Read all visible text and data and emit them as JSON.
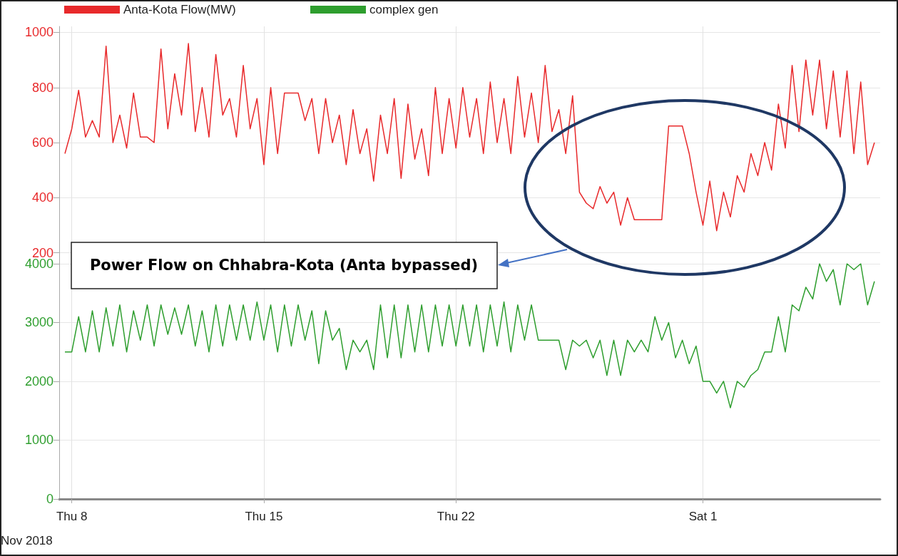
{
  "chart_data": [
    {
      "type": "line",
      "x": [
        "2018-11-07T18:00",
        "2018-11-08T00:00",
        "2018-11-08T06:00",
        "2018-11-08T12:00",
        "2018-11-08T18:00",
        "2018-11-09T00:00",
        "2018-11-09T06:00",
        "2018-11-09T12:00",
        "2018-11-09T18:00",
        "2018-11-10T00:00",
        "2018-11-10T06:00",
        "2018-11-10T12:00",
        "2018-11-10T18:00",
        "2018-11-11T00:00",
        "2018-11-11T06:00",
        "2018-11-11T12:00",
        "2018-11-11T18:00",
        "2018-11-12T00:00",
        "2018-11-12T06:00",
        "2018-11-12T12:00",
        "2018-11-12T18:00",
        "2018-11-13T00:00",
        "2018-11-13T06:00",
        "2018-11-13T12:00",
        "2018-11-13T18:00",
        "2018-11-14T00:00",
        "2018-11-14T06:00",
        "2018-11-14T12:00",
        "2018-11-14T18:00",
        "2018-11-15T00:00",
        "2018-11-15T06:00",
        "2018-11-15T12:00",
        "2018-11-15T18:00",
        "2018-11-16T00:00",
        "2018-11-16T06:00",
        "2018-11-16T12:00",
        "2018-11-16T18:00",
        "2018-11-17T00:00",
        "2018-11-17T06:00",
        "2018-11-17T12:00",
        "2018-11-17T18:00",
        "2018-11-18T00:00",
        "2018-11-18T06:00",
        "2018-11-18T12:00",
        "2018-11-18T18:00",
        "2018-11-19T00:00",
        "2018-11-19T06:00",
        "2018-11-19T12:00",
        "2018-11-19T18:00",
        "2018-11-20T00:00",
        "2018-11-20T06:00",
        "2018-11-20T12:00",
        "2018-11-20T18:00",
        "2018-11-21T00:00",
        "2018-11-21T06:00",
        "2018-11-21T12:00",
        "2018-11-21T18:00",
        "2018-11-22T00:00",
        "2018-11-22T06:00",
        "2018-11-22T12:00",
        "2018-11-22T18:00",
        "2018-11-23T00:00",
        "2018-11-23T06:00",
        "2018-11-23T12:00",
        "2018-11-23T18:00",
        "2018-11-24T00:00",
        "2018-11-24T06:00",
        "2018-11-24T12:00",
        "2018-11-24T18:00",
        "2018-11-25T00:00",
        "2018-11-25T06:00",
        "2018-11-25T12:00",
        "2018-11-25T18:00",
        "2018-11-26T00:00",
        "2018-11-26T06:00",
        "2018-11-26T12:00",
        "2018-11-26T18:00",
        "2018-11-27T00:00",
        "2018-11-27T06:00",
        "2018-11-27T12:00",
        "2018-11-27T18:00",
        "2018-11-28T00:00",
        "2018-11-28T06:00",
        "2018-11-28T12:00",
        "2018-11-28T18:00",
        "2018-11-29T00:00",
        "2018-11-29T06:00",
        "2018-11-29T12:00",
        "2018-11-29T18:00",
        "2018-11-30T00:00",
        "2018-11-30T06:00",
        "2018-11-30T12:00",
        "2018-11-30T18:00",
        "2018-12-01T00:00",
        "2018-12-01T06:00",
        "2018-12-01T12:00",
        "2018-12-01T18:00",
        "2018-12-02T00:00",
        "2018-12-02T06:00",
        "2018-12-02T12:00",
        "2018-12-02T18:00",
        "2018-12-03T00:00",
        "2018-12-03T06:00",
        "2018-12-03T12:00",
        "2018-12-03T18:00",
        "2018-12-04T00:00",
        "2018-12-04T06:00",
        "2018-12-04T12:00",
        "2018-12-04T18:00",
        "2018-12-05T00:00",
        "2018-12-05T06:00",
        "2018-12-05T12:00",
        "2018-12-05T18:00",
        "2018-12-06T00:00",
        "2018-12-06T06:00",
        "2018-12-06T12:00",
        "2018-12-06T18:00",
        "2018-12-07T00:00",
        "2018-12-07T06:00"
      ],
      "series": [
        {
          "name": "Anta-Kota Flow(MW)",
          "color": "#e8292b",
          "values": [
            560,
            650,
            790,
            620,
            680,
            620,
            950,
            600,
            700,
            580,
            780,
            620,
            620,
            600,
            940,
            650,
            850,
            700,
            960,
            640,
            800,
            620,
            920,
            700,
            760,
            620,
            880,
            650,
            760,
            520,
            800,
            560,
            780,
            780,
            780,
            680,
            760,
            560,
            760,
            600,
            700,
            520,
            720,
            560,
            650,
            460,
            700,
            560,
            760,
            470,
            740,
            540,
            650,
            480,
            800,
            560,
            760,
            580,
            800,
            620,
            760,
            560,
            820,
            600,
            760,
            560,
            840,
            620,
            780,
            600,
            880,
            640,
            720,
            560,
            770,
            420,
            380,
            360,
            440,
            380,
            420,
            300,
            400,
            320,
            320,
            320,
            320,
            320,
            660,
            660,
            660,
            560,
            420,
            300,
            460,
            280,
            420,
            330,
            480,
            420,
            560,
            480,
            600,
            500,
            740,
            580,
            880,
            640,
            900,
            700,
            900,
            650,
            860,
            620,
            860,
            560,
            820,
            520,
            600
          ]
        }
      ],
      "xlim": [
        "2018-11-07T13:00",
        "2018-12-07T11:00"
      ],
      "xticks": [
        {
          "value": "2018-11-08T00:00",
          "label": null
        },
        {
          "value": "2018-11-15T00:00",
          "label": null
        },
        {
          "value": "2018-11-22T00:00",
          "label": null
        },
        {
          "value": "2018-12-01T00:00",
          "label": null
        }
      ],
      "ylim": [
        160,
        1022
      ],
      "yticks": [
        200,
        400,
        600,
        800,
        1000
      ],
      "tick_labels": "y",
      "grid": true,
      "legend": "top left",
      "marker": "none",
      "line_style": "solid",
      "annotations": [
        "Power Flow on Chhabra-Kota (Anta bypassed)"
      ]
    },
    {
      "type": "line",
      "xlabel": "Nov 2018",
      "x": [
        "2018-11-07T18:00",
        "2018-11-08T00:00",
        "2018-11-08T06:00",
        "2018-11-08T12:00",
        "2018-11-08T18:00",
        "2018-11-09T00:00",
        "2018-11-09T06:00",
        "2018-11-09T12:00",
        "2018-11-09T18:00",
        "2018-11-10T00:00",
        "2018-11-10T06:00",
        "2018-11-10T12:00",
        "2018-11-10T18:00",
        "2018-11-11T00:00",
        "2018-11-11T06:00",
        "2018-11-11T12:00",
        "2018-11-11T18:00",
        "2018-11-12T00:00",
        "2018-11-12T06:00",
        "2018-11-12T12:00",
        "2018-11-12T18:00",
        "2018-11-13T00:00",
        "2018-11-13T06:00",
        "2018-11-13T12:00",
        "2018-11-13T18:00",
        "2018-11-14T00:00",
        "2018-11-14T06:00",
        "2018-11-14T12:00",
        "2018-11-14T18:00",
        "2018-11-15T00:00",
        "2018-11-15T06:00",
        "2018-11-15T12:00",
        "2018-11-15T18:00",
        "2018-11-16T00:00",
        "2018-11-16T06:00",
        "2018-11-16T12:00",
        "2018-11-16T18:00",
        "2018-11-17T00:00",
        "2018-11-17T06:00",
        "2018-11-17T12:00",
        "2018-11-17T18:00",
        "2018-11-18T00:00",
        "2018-11-18T06:00",
        "2018-11-18T12:00",
        "2018-11-18T18:00",
        "2018-11-19T00:00",
        "2018-11-19T06:00",
        "2018-11-19T12:00",
        "2018-11-19T18:00",
        "2018-11-20T00:00",
        "2018-11-20T06:00",
        "2018-11-20T12:00",
        "2018-11-20T18:00",
        "2018-11-21T00:00",
        "2018-11-21T06:00",
        "2018-11-21T12:00",
        "2018-11-21T18:00",
        "2018-11-22T00:00",
        "2018-11-22T06:00",
        "2018-11-22T12:00",
        "2018-11-22T18:00",
        "2018-11-23T00:00",
        "2018-11-23T06:00",
        "2018-11-23T12:00",
        "2018-11-23T18:00",
        "2018-11-24T00:00",
        "2018-11-24T06:00",
        "2018-11-24T12:00",
        "2018-11-24T18:00",
        "2018-11-25T00:00",
        "2018-11-25T06:00",
        "2018-11-25T12:00",
        "2018-11-25T18:00",
        "2018-11-26T00:00",
        "2018-11-26T06:00",
        "2018-11-26T12:00",
        "2018-11-26T18:00",
        "2018-11-27T00:00",
        "2018-11-27T06:00",
        "2018-11-27T12:00",
        "2018-11-27T18:00",
        "2018-11-28T00:00",
        "2018-11-28T06:00",
        "2018-11-28T12:00",
        "2018-11-28T18:00",
        "2018-11-29T00:00",
        "2018-11-29T06:00",
        "2018-11-29T12:00",
        "2018-11-29T18:00",
        "2018-11-30T00:00",
        "2018-11-30T06:00",
        "2018-11-30T12:00",
        "2018-11-30T18:00",
        "2018-12-01T00:00",
        "2018-12-01T06:00",
        "2018-12-01T12:00",
        "2018-12-01T18:00",
        "2018-12-02T00:00",
        "2018-12-02T06:00",
        "2018-12-02T12:00",
        "2018-12-02T18:00",
        "2018-12-03T00:00",
        "2018-12-03T06:00",
        "2018-12-03T12:00",
        "2018-12-03T18:00",
        "2018-12-04T00:00",
        "2018-12-04T06:00",
        "2018-12-04T12:00",
        "2018-12-04T18:00",
        "2018-12-05T00:00",
        "2018-12-05T06:00",
        "2018-12-05T12:00",
        "2018-12-05T18:00",
        "2018-12-06T00:00",
        "2018-12-06T06:00",
        "2018-12-06T12:00",
        "2018-12-06T18:00",
        "2018-12-07T00:00",
        "2018-12-07T06:00"
      ],
      "series": [
        {
          "name": "complex gen",
          "color": "#2e9e2e",
          "values": [
            2500,
            2500,
            3100,
            2500,
            3200,
            2500,
            3250,
            2600,
            3300,
            2500,
            3200,
            2700,
            3300,
            2600,
            3300,
            2800,
            3250,
            2800,
            3300,
            2600,
            3200,
            2500,
            3300,
            2600,
            3300,
            2700,
            3300,
            2700,
            3350,
            2700,
            3300,
            2500,
            3300,
            2600,
            3300,
            2700,
            3200,
            2300,
            3200,
            2700,
            2900,
            2200,
            2700,
            2500,
            2700,
            2200,
            3300,
            2400,
            3300,
            2400,
            3300,
            2500,
            3300,
            2500,
            3300,
            2600,
            3300,
            2600,
            3300,
            2600,
            3300,
            2500,
            3300,
            2600,
            3350,
            2500,
            3300,
            2700,
            3300,
            2700,
            2700,
            2700,
            2700,
            2200,
            2700,
            2600,
            2700,
            2400,
            2700,
            2100,
            2700,
            2100,
            2700,
            2500,
            2700,
            2500,
            3100,
            2700,
            3000,
            2400,
            2700,
            2300,
            2600,
            2000,
            2000,
            1800,
            2000,
            1550,
            2000,
            1900,
            2100,
            2200,
            2500,
            2500,
            3100,
            2500,
            3300,
            3200,
            3600,
            3400,
            4000,
            3700,
            3900,
            3300,
            4000,
            3900,
            4000,
            3300,
            3700
          ]
        }
      ],
      "xlim": [
        "2018-11-07T13:00",
        "2018-12-07T11:00"
      ],
      "xticks": [
        {
          "value": "2018-11-08T00:00",
          "label": "Thu 8"
        },
        {
          "value": "2018-11-15T00:00",
          "label": "Thu 15"
        },
        {
          "value": "2018-11-22T00:00",
          "label": "Thu 22"
        },
        {
          "value": "2018-12-01T00:00",
          "label": "Sat 1"
        }
      ],
      "ylim": [
        -25,
        4000
      ],
      "yticks": [
        0,
        1000,
        2000,
        3000,
        4000
      ],
      "grid": true,
      "legend": "top left",
      "marker": "none",
      "line_style": "solid"
    }
  ]
}
